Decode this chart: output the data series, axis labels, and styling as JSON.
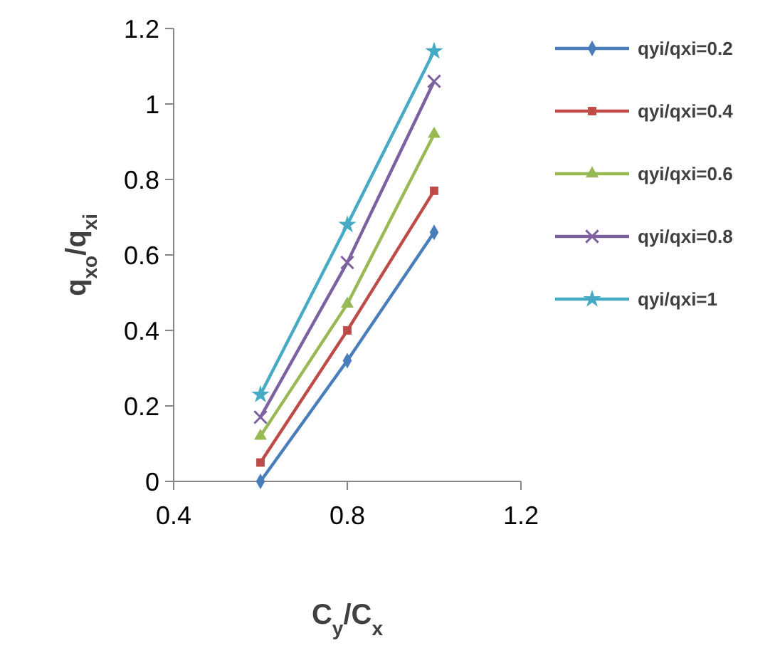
{
  "chart_data": {
    "type": "line",
    "xlabel": "C$_{y}$/C$_{x}$",
    "ylabel": "q$_{xo}$/q$_{xi}$",
    "xlim": [
      0.4,
      1.2
    ],
    "xticks": [
      0.4,
      0.8,
      1.2
    ],
    "ylim": [
      0,
      1.2
    ],
    "yticks": [
      0,
      0.2,
      0.4,
      0.6,
      0.8,
      1,
      1.2
    ],
    "grid": false,
    "legend": "right",
    "x": [
      0.6,
      0.8,
      1
    ],
    "series": [
      {
        "name": "qyi/qxi=0.2",
        "color": "#4a7ebb",
        "marker": "diamond",
        "values": [
          0,
          0.32,
          0.66
        ]
      },
      {
        "name": "qyi/qxi=0.4",
        "color": "#be4b48",
        "marker": "square",
        "values": [
          0.05,
          0.4,
          0.77
        ]
      },
      {
        "name": "qyi/qxi=0.6",
        "color": "#98b954",
        "marker": "triangle",
        "values": [
          0.12,
          0.47,
          0.92
        ]
      },
      {
        "name": "qyi/qxi=0.8",
        "color": "#7d60a0",
        "marker": "cross",
        "values": [
          0.17,
          0.58,
          1.06
        ]
      },
      {
        "name": "qyi/qxi=1",
        "color": "#46aac5",
        "marker": "star",
        "values": [
          0.23,
          0.68,
          1.14
        ]
      }
    ]
  }
}
